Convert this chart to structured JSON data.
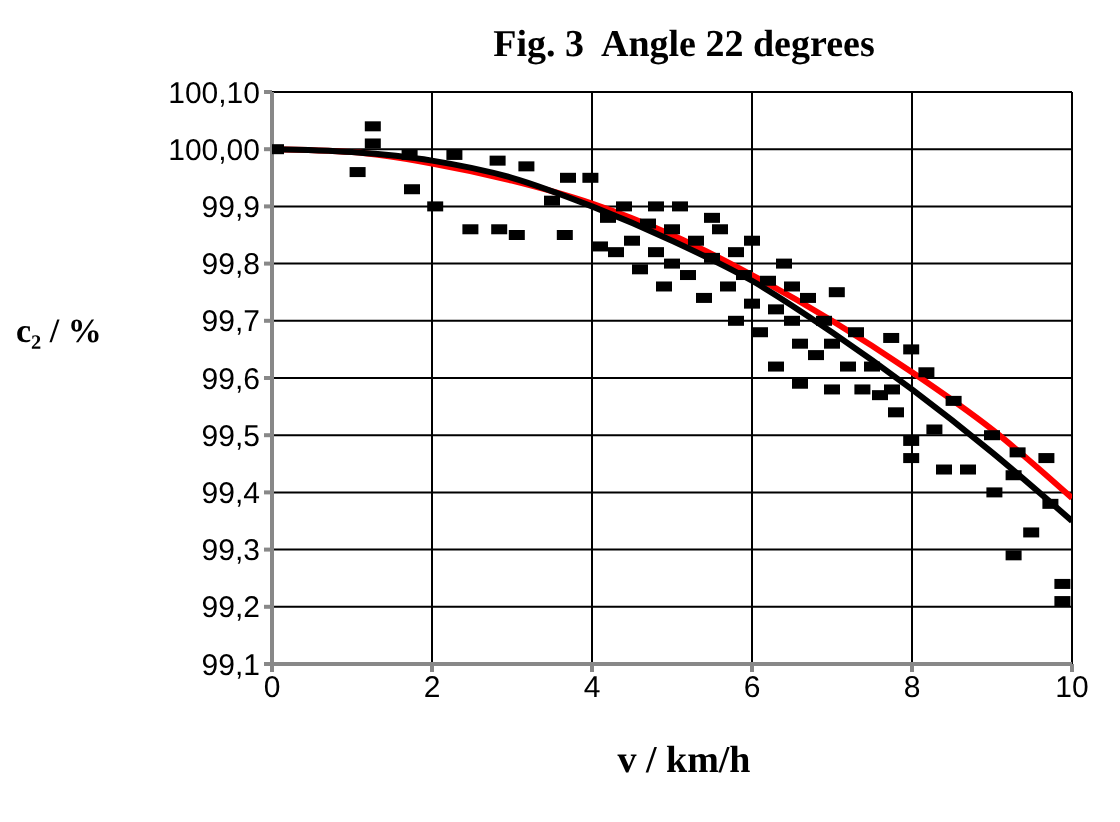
{
  "chart_data": {
    "type": "scatter",
    "title": "Fig. 3  Angle 22 degrees",
    "xlabel": "v / km/h",
    "ylabel": "c₂ / %",
    "xlim": [
      0,
      10
    ],
    "xticks": [
      0,
      2,
      4,
      6,
      8,
      10
    ],
    "ylim": [
      99.1,
      100.1
    ],
    "yticks": [
      {
        "value": 99.1,
        "label": "99,1"
      },
      {
        "value": 99.2,
        "label": "99,2"
      },
      {
        "value": 99.3,
        "label": "99,3"
      },
      {
        "value": 99.4,
        "label": "99,4"
      },
      {
        "value": 99.5,
        "label": "99,5"
      },
      {
        "value": 99.6,
        "label": "99,6"
      },
      {
        "value": 99.7,
        "label": "99,7"
      },
      {
        "value": 99.8,
        "label": "99,8"
      },
      {
        "value": 99.9,
        "label": "99,9"
      },
      {
        "value": 100.0,
        "label": "100,00"
      },
      {
        "value": 100.1,
        "label": "100,10"
      }
    ],
    "grid": true,
    "legend": false,
    "series": [
      {
        "marker": "square",
        "color": "#000000",
        "x": [
          0.05,
          1.26,
          1.26,
          1.07,
          1.72,
          1.75,
          2.28,
          2.04,
          2.48,
          2.82,
          2.84,
          3.06,
          3.18,
          3.5,
          3.66,
          3.7,
          3.98,
          4.1,
          4.2,
          4.3,
          4.4,
          4.5,
          4.6,
          4.7,
          4.8,
          4.9,
          5.0,
          5.0,
          5.1,
          5.2,
          5.3,
          5.4,
          5.5,
          5.6,
          5.7,
          5.8,
          5.8,
          5.9,
          6.0,
          6.0,
          6.1,
          6.2,
          6.3,
          6.3,
          6.4,
          6.5,
          6.6,
          6.7,
          6.8,
          6.9,
          7.0,
          7.2,
          7.3,
          7.5,
          7.6,
          6.5,
          5.5,
          4.8,
          6.6,
          7.0,
          7.06,
          7.74,
          7.99,
          8.18,
          7.99,
          7.99,
          8.4,
          8.7,
          9.03,
          9.27,
          9.68,
          9.49,
          9.27,
          9.88,
          9.88,
          9.73,
          8.52,
          8.28,
          9.0,
          9.32,
          7.8,
          7.75,
          7.38
        ],
        "values": [
          100.0,
          100.04,
          100.01,
          99.96,
          99.99,
          99.93,
          99.99,
          99.9,
          99.86,
          99.98,
          99.86,
          99.85,
          99.97,
          99.91,
          99.85,
          99.95,
          99.95,
          99.83,
          99.88,
          99.82,
          99.9,
          99.84,
          99.79,
          99.87,
          99.82,
          99.76,
          99.86,
          99.8,
          99.9,
          99.78,
          99.84,
          99.74,
          99.81,
          99.86,
          99.76,
          99.7,
          99.82,
          99.78,
          99.73,
          99.84,
          99.68,
          99.77,
          99.72,
          99.62,
          99.8,
          99.7,
          99.66,
          99.74,
          99.64,
          99.7,
          99.66,
          99.62,
          99.68,
          99.62,
          99.57,
          99.76,
          99.88,
          99.9,
          99.59,
          99.58,
          99.75,
          99.67,
          99.65,
          99.61,
          99.49,
          99.46,
          99.44,
          99.44,
          99.4,
          99.43,
          99.46,
          99.33,
          99.29,
          99.24,
          99.21,
          99.38,
          99.56,
          99.51,
          99.5,
          99.47,
          99.54,
          99.58,
          99.58
        ]
      },
      {
        "type": "line",
        "marker": "none",
        "color": "#ff0000",
        "x": [
          0,
          1,
          2,
          3,
          4,
          5,
          6,
          7,
          8,
          9,
          10
        ],
        "values": [
          100.0,
          99.995,
          99.975,
          99.945,
          99.905,
          99.85,
          99.78,
          99.7,
          99.61,
          99.51,
          99.39
        ]
      },
      {
        "type": "line",
        "marker": "none",
        "color": "#000000",
        "x": [
          0,
          1,
          2,
          3,
          4,
          5,
          6,
          7,
          8,
          9,
          10
        ],
        "values": [
          100.0,
          99.995,
          99.98,
          99.95,
          99.9,
          99.84,
          99.77,
          99.68,
          99.58,
          99.47,
          99.35
        ]
      }
    ]
  }
}
